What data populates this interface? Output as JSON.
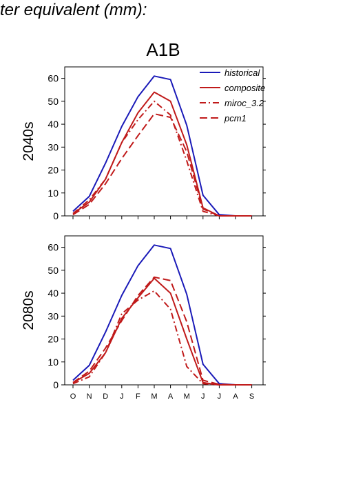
{
  "header": {
    "title": "ter equivalent (mm):"
  },
  "figure": {
    "scenario": "A1B"
  },
  "colors": {
    "historical": "#1a1ab8",
    "projection": "#c01a1a"
  },
  "chart_data": [
    {
      "type": "line",
      "panel_label": "2040s",
      "categories": [
        "O",
        "N",
        "D",
        "J",
        "F",
        "M",
        "A",
        "M",
        "J",
        "J",
        "A",
        "S"
      ],
      "ylim": [
        0,
        65
      ],
      "yticks": [
        0,
        10,
        20,
        30,
        40,
        50,
        60
      ],
      "legend_placement": "top-right",
      "series": [
        {
          "name": "historical",
          "style": "solid",
          "color": "#1a1ab8",
          "values": [
            2,
            8.5,
            23,
            39,
            52,
            61,
            59.5,
            39.5,
            9,
            0.5,
            0,
            0
          ]
        },
        {
          "name": "composite",
          "style": "solid",
          "color": "#c01a1a",
          "values": [
            1,
            6,
            16,
            32,
            45,
            54,
            50,
            31,
            3.5,
            0,
            0,
            0
          ]
        },
        {
          "name": "miroc_3.2",
          "style": "dashdot",
          "color": "#c01a1a",
          "values": [
            1,
            7,
            16,
            32,
            42,
            50,
            44,
            24,
            2,
            0,
            0,
            0
          ]
        },
        {
          "name": "pcm1",
          "style": "dashed",
          "color": "#c01a1a",
          "values": [
            0.5,
            5,
            14,
            25,
            35,
            44.5,
            43,
            28,
            3,
            0,
            0,
            0
          ]
        }
      ]
    },
    {
      "type": "line",
      "panel_label": "2080s",
      "categories": [
        "O",
        "N",
        "D",
        "J",
        "F",
        "M",
        "A",
        "M",
        "J",
        "J",
        "A",
        "S"
      ],
      "ylim": [
        0,
        65
      ],
      "yticks": [
        0,
        10,
        20,
        30,
        40,
        50,
        60
      ],
      "series": [
        {
          "name": "historical",
          "style": "solid",
          "color": "#1a1ab8",
          "values": [
            2,
            8.5,
            23,
            39,
            52,
            61,
            59.5,
            39.5,
            9,
            0.5,
            0,
            0
          ]
        },
        {
          "name": "composite",
          "style": "solid",
          "color": "#c01a1a",
          "values": [
            1,
            5,
            14,
            29,
            38,
            46.5,
            40,
            20,
            1,
            0,
            0,
            0
          ]
        },
        {
          "name": "miroc_3.2",
          "style": "dashdot",
          "color": "#c01a1a",
          "values": [
            0.5,
            3.5,
            14,
            31,
            37,
            41,
            33,
            8,
            0.5,
            0,
            0,
            0
          ]
        },
        {
          "name": "pcm1",
          "style": "dashed",
          "color": "#c01a1a",
          "values": [
            1,
            6,
            16,
            28,
            39,
            47,
            45.5,
            27.5,
            2,
            0.2,
            0,
            0
          ]
        }
      ]
    }
  ]
}
